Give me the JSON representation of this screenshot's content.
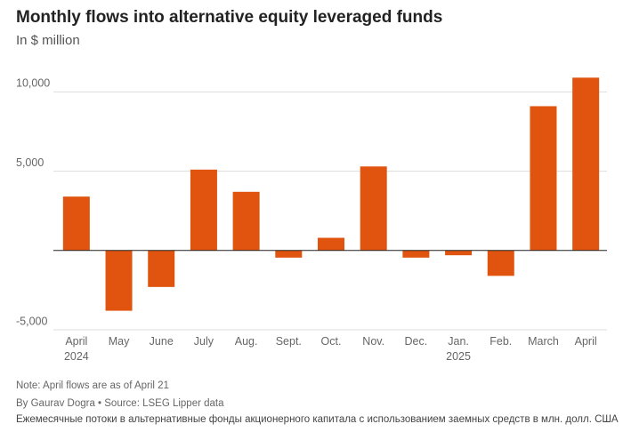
{
  "chart_data": {
    "type": "bar",
    "title": "Monthly flows into alternative equity leveraged funds",
    "subtitle": "In $ million",
    "categories": [
      "April\n2024",
      "May",
      "June",
      "July",
      "Aug.",
      "Sept.",
      "Oct.",
      "Nov.",
      "Dec.",
      "Jan.\n2025",
      "Feb.",
      "March",
      "April"
    ],
    "values": [
      3400,
      -3800,
      -2300,
      5100,
      3700,
      -450,
      800,
      5300,
      -450,
      -300,
      -1600,
      9100,
      10900
    ],
    "color": "#e0540f",
    "ylim": [
      -5000,
      11200
    ],
    "yticks": [
      {
        "value": -5000,
        "label": "-5,000"
      },
      {
        "value": 5000,
        "label": "5,000"
      },
      {
        "value": 10000,
        "label": "10,000"
      }
    ],
    "grid": true,
    "note": "Note: April flows are as of April 21",
    "byline": "By Gaurav Dogra • Source: LSEG Lipper data",
    "caption": "Ежемесячные потоки в альтернативные фонды акционерного капитала с использованием заемных средств в млн. долл. США"
  }
}
